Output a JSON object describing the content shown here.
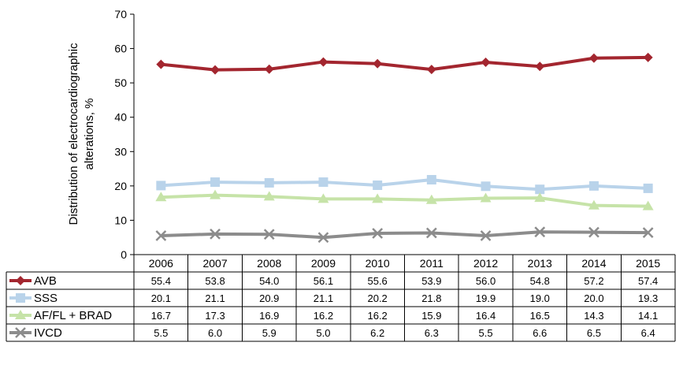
{
  "chart_data": {
    "type": "line",
    "ylabel_line1": "Distribution of electrocardiographic",
    "ylabel_line2": "alterations, %",
    "ylim": [
      0,
      70
    ],
    "yticks": [
      0,
      10,
      20,
      30,
      40,
      50,
      60,
      70
    ],
    "categories": [
      "2006",
      "2007",
      "2008",
      "2009",
      "2010",
      "2011",
      "2012",
      "2013",
      "2014",
      "2015"
    ],
    "legend_placement": "data table rows below chart",
    "series": [
      {
        "name": "AVB",
        "marker": "diamond",
        "color": "#a3262f",
        "values": [
          55.4,
          53.8,
          54.0,
          56.1,
          55.6,
          53.9,
          56.0,
          54.8,
          57.2,
          57.4
        ],
        "labels": [
          "55.4",
          "53.8",
          "54.0",
          "56.1",
          "55.6",
          "53.9",
          "56.0",
          "54.8",
          "57.2",
          "57.4"
        ]
      },
      {
        "name": "SSS",
        "marker": "square",
        "color": "#b9d3ea",
        "values": [
          20.1,
          21.1,
          20.9,
          21.1,
          20.2,
          21.8,
          19.9,
          19.0,
          20.0,
          19.3
        ],
        "labels": [
          "20.1",
          "21.1",
          "20.9",
          "21.1",
          "20.2",
          "21.8",
          "19.9",
          "19.0",
          "20.0",
          "19.3"
        ]
      },
      {
        "name": "AF/FL + BRAD",
        "marker": "triangle",
        "color": "#c6e3a8",
        "values": [
          16.7,
          17.3,
          16.9,
          16.2,
          16.2,
          15.9,
          16.4,
          16.5,
          14.3,
          14.1
        ],
        "labels": [
          "16.7",
          "17.3",
          "16.9",
          "16.2",
          "16.2",
          "15.9",
          "16.4",
          "16.5",
          "14.3",
          "14.1"
        ]
      },
      {
        "name": "IVCD",
        "marker": "x",
        "color": "#8c8c8c",
        "values": [
          5.5,
          6.0,
          5.9,
          5.0,
          6.2,
          6.3,
          5.5,
          6.6,
          6.5,
          6.4
        ],
        "labels": [
          "5.5",
          "6.0",
          "5.9",
          "5.0",
          "6.2",
          "6.3",
          "5.5",
          "6.6",
          "6.5",
          "6.4"
        ]
      }
    ]
  }
}
